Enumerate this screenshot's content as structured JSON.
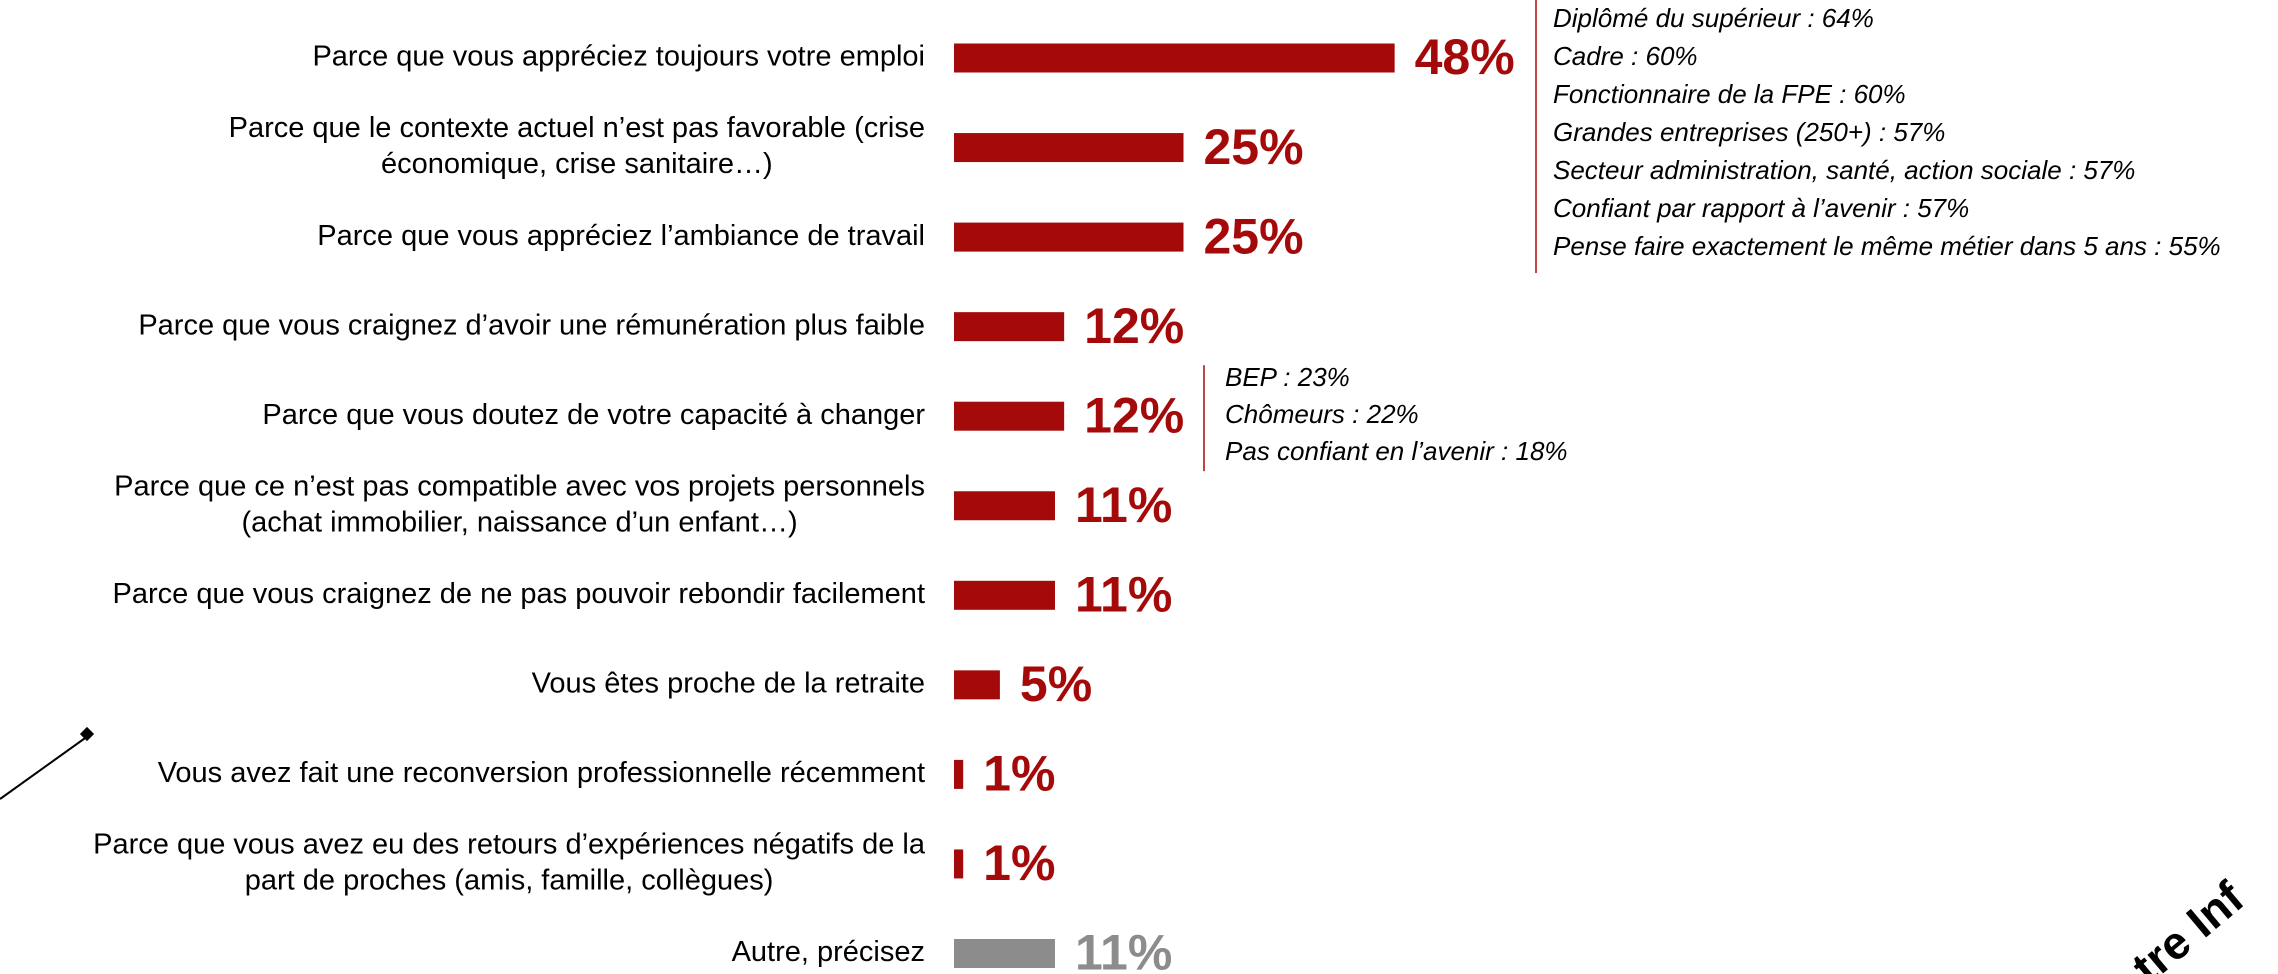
{
  "chart_data": {
    "type": "bar",
    "orientation": "horizontal",
    "categories": [
      [
        "Parce que vous appréciez toujours votre emploi"
      ],
      [
        "Parce que le contexte actuel n’est pas favorable (crise",
        "économique, crise sanitaire…)"
      ],
      [
        "Parce que vous appréciez l’ambiance de travail"
      ],
      [
        "Parce que vous craignez d’avoir une rémunération plus faible"
      ],
      [
        "Parce que vous doutez de votre capacité à changer"
      ],
      [
        "Parce que ce n’est pas compatible avec vos projets personnels",
        "(achat immobilier, naissance d’un enfant…)"
      ],
      [
        "Parce que vous craignez de ne pas pouvoir rebondir facilement"
      ],
      [
        "Vous êtes proche de la retraite"
      ],
      [
        "Vous avez fait une reconversion professionnelle récemment"
      ],
      [
        "Parce que vous avez eu des retours d’expériences négatifs de la",
        "part de proches (amis, famille, collègues)"
      ],
      [
        "Autre, précisez"
      ]
    ],
    "values": [
      48,
      25,
      25,
      12,
      12,
      11,
      11,
      5,
      1,
      1,
      11
    ],
    "value_labels": [
      "48%",
      "25%",
      "25%",
      "12%",
      "12%",
      "11%",
      "11%",
      "5%",
      "1%",
      "1%",
      "11%"
    ],
    "colors": [
      "#a50a0a",
      "#a50a0a",
      "#a50a0a",
      "#a50a0a",
      "#a50a0a",
      "#a50a0a",
      "#a50a0a",
      "#a50a0a",
      "#a50a0a",
      "#a50a0a",
      "#8c8c8c"
    ],
    "xlim": [
      0,
      48
    ],
    "annotations": [
      {
        "row": 0,
        "lines": [
          "Diplômé du supérieur : 64%",
          "Cadre : 60%",
          "Fonctionnaire de la FPE : 60%",
          "Grandes entreprises (250+) : 57%",
          "Secteur administration, santé, action sociale : 57%",
          "Confiant par rapport à l’avenir : 57%",
          "Pense faire exactement le même métier dans 5 ans : 55%"
        ]
      },
      {
        "row": 4,
        "lines": [
          "BEP : 23%",
          "Chômeurs : 22%",
          "Pas confiant en l’avenir : 18%"
        ]
      }
    ],
    "corner_text": "tre Inf"
  }
}
